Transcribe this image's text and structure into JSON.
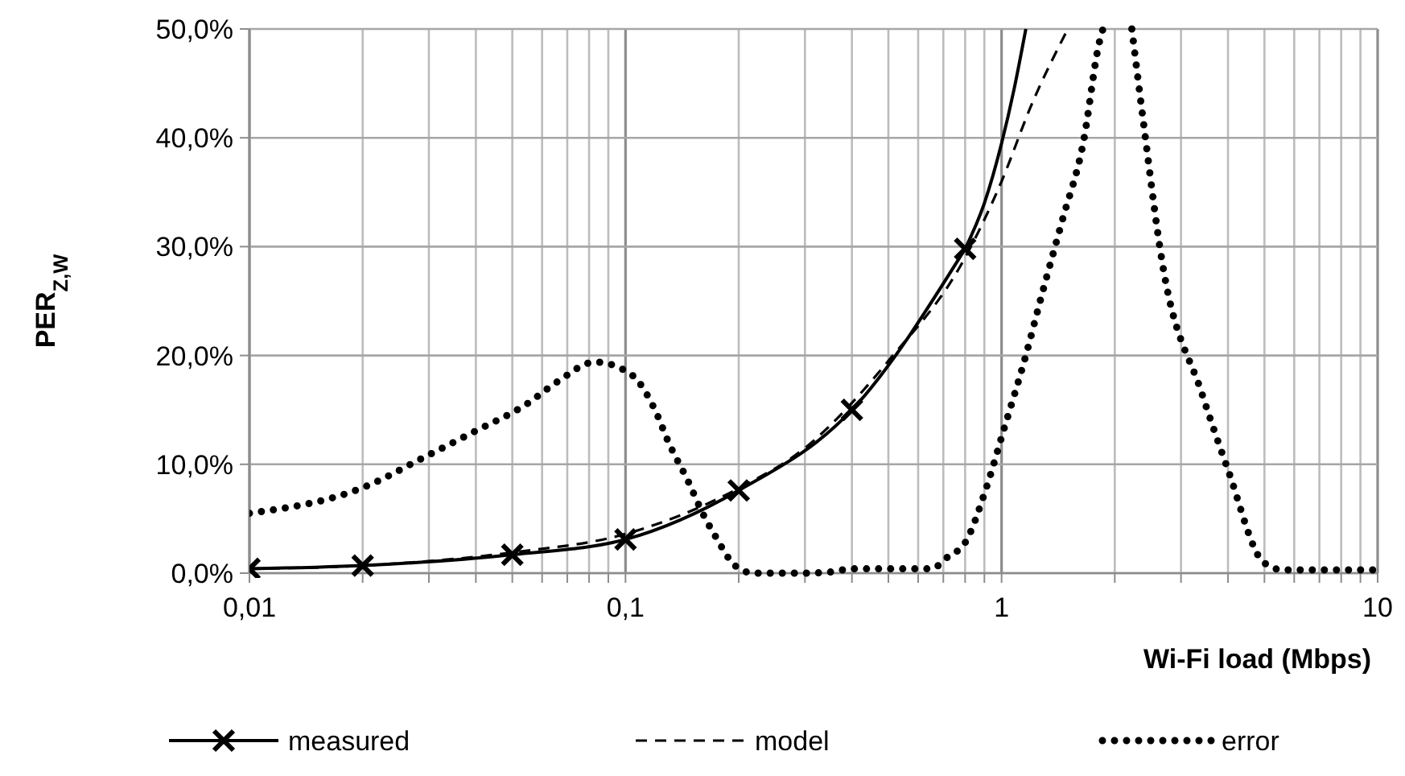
{
  "chart_data": {
    "type": "line",
    "xlabel": "Wi-Fi load (Mbps)",
    "ylabel": "PER$_{Z,W}$",
    "log": "x",
    "grid": true,
    "legend": "bottom",
    "xlim": [
      0.01,
      10
    ],
    "ylim": [
      0,
      50
    ],
    "xticks": [
      {
        "value": 0.01,
        "label": "0,01"
      },
      {
        "value": 0.02,
        "label": null
      },
      {
        "value": 0.03,
        "label": null
      },
      {
        "value": 0.04,
        "label": null
      },
      {
        "value": 0.05,
        "label": null
      },
      {
        "value": 0.06,
        "label": null
      },
      {
        "value": 0.07,
        "label": null
      },
      {
        "value": 0.08,
        "label": null
      },
      {
        "value": 0.09,
        "label": null
      },
      {
        "value": 0.1,
        "label": "0,1"
      },
      {
        "value": 0.2,
        "label": null
      },
      {
        "value": 0.3,
        "label": null
      },
      {
        "value": 0.4,
        "label": null
      },
      {
        "value": 0.5,
        "label": null
      },
      {
        "value": 0.6,
        "label": null
      },
      {
        "value": 0.7,
        "label": null
      },
      {
        "value": 0.8,
        "label": null
      },
      {
        "value": 0.9,
        "label": null
      },
      {
        "value": 1,
        "label": "1"
      },
      {
        "value": 2,
        "label": null
      },
      {
        "value": 3,
        "label": null
      },
      {
        "value": 4,
        "label": null
      },
      {
        "value": 5,
        "label": null
      },
      {
        "value": 6,
        "label": null
      },
      {
        "value": 7,
        "label": null
      },
      {
        "value": 8,
        "label": null
      },
      {
        "value": 9,
        "label": null
      },
      {
        "value": 10,
        "label": "10"
      }
    ],
    "yticks": [
      {
        "value": 0,
        "label": "0,0%"
      },
      {
        "value": 10,
        "label": "10,0%"
      },
      {
        "value": 20,
        "label": "20,0%"
      },
      {
        "value": 30,
        "label": "30,0%"
      },
      {
        "value": 40,
        "label": "40,0%"
      },
      {
        "value": 50,
        "label": "50,0%"
      }
    ],
    "series": [
      {
        "name": "measured",
        "color": "#000000",
        "marker": "cross",
        "line_style": "solid",
        "x": [
          0.01,
          0.02,
          0.05,
          0.1,
          0.2,
          0.4,
          0.8
        ],
        "values": [
          0.4,
          0.7,
          1.7,
          3.1,
          7.6,
          15,
          29.8
        ]
      },
      {
        "color": "#000000",
        "marker": "none",
        "line_style": "solid",
        "x": [
          0.8,
          0.9,
          1,
          1.08,
          1.16
        ],
        "values": [
          29.8,
          34,
          39.5,
          44.5,
          50
        ]
      },
      {
        "name": "model",
        "color": "#000000",
        "marker": "none",
        "line_style": "dashed",
        "x": [
          0.01,
          0.02,
          0.05,
          0.1,
          0.2,
          0.3,
          0.5,
          0.8,
          1,
          1.2,
          1.5
        ],
        "values": [
          0.4,
          0.7,
          1.9,
          3.6,
          7.8,
          11.5,
          19.5,
          29,
          36,
          43,
          50
        ]
      },
      {
        "name": "error",
        "color": "#000000",
        "marker": "none",
        "line_style": "dotted",
        "x": [
          0.01,
          0.0205,
          0.0286,
          0.0396,
          0.0544,
          0.066,
          0.083,
          0.104,
          0.119,
          0.131,
          0.146,
          0.162,
          0.172,
          0.197,
          0.22,
          0.3,
          0.35,
          0.4,
          0.65,
          0.72,
          0.8,
          0.91,
          1.01,
          1.16,
          1.28,
          1.45,
          1.65,
          1.82,
          1.86,
          2,
          2.22,
          2.38,
          2.67,
          3.41,
          4,
          4.97,
          5.6,
          10
        ],
        "values": [
          5.5,
          8,
          10.5,
          13,
          15.5,
          17.6,
          19.4,
          18.2,
          15.2,
          11.8,
          8.6,
          5.2,
          3.6,
          0.6,
          0,
          0,
          0.1,
          0.4,
          0.4,
          1.5,
          2.8,
          7.8,
          13,
          20,
          25.6,
          32.4,
          39.6,
          48.8,
          50,
          null,
          50,
          41.6,
          28.7,
          16.5,
          9.5,
          1,
          0.3,
          0.3
        ]
      }
    ]
  }
}
